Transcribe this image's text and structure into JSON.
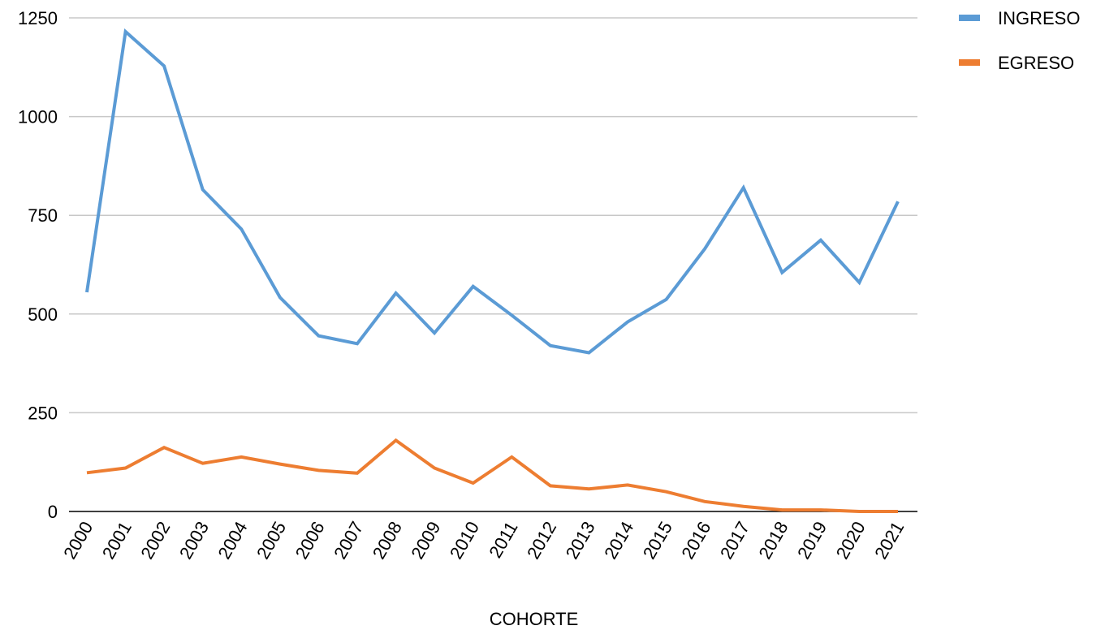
{
  "chart_data": {
    "type": "line",
    "title": "",
    "xlabel": "COHORTE",
    "ylabel": "",
    "ylim": [
      0,
      1250
    ],
    "yticks": [
      0,
      250,
      500,
      750,
      1000,
      1250
    ],
    "grid": true,
    "legend_position": "top-right",
    "categories": [
      "2000",
      "2001",
      "2002",
      "2003",
      "2004",
      "2005",
      "2006",
      "2007",
      "2008",
      "2009",
      "2010",
      "2011",
      "2012",
      "2013",
      "2014",
      "2015",
      "2016",
      "2017",
      "2018",
      "2019",
      "2020",
      "2021"
    ],
    "series": [
      {
        "name": "INGRESO",
        "color": "#5b9bd5",
        "values": [
          555,
          1215,
          1128,
          815,
          715,
          542,
          445,
          425,
          553,
          452,
          570,
          497,
          420,
          402,
          480,
          537,
          665,
          820,
          605,
          687,
          580,
          785
        ]
      },
      {
        "name": "EGRESO",
        "color": "#ed7d31",
        "values": [
          98,
          110,
          162,
          122,
          138,
          120,
          104,
          97,
          180,
          110,
          72,
          138,
          65,
          57,
          67,
          50,
          25,
          13,
          4,
          4,
          0,
          0
        ]
      }
    ]
  }
}
